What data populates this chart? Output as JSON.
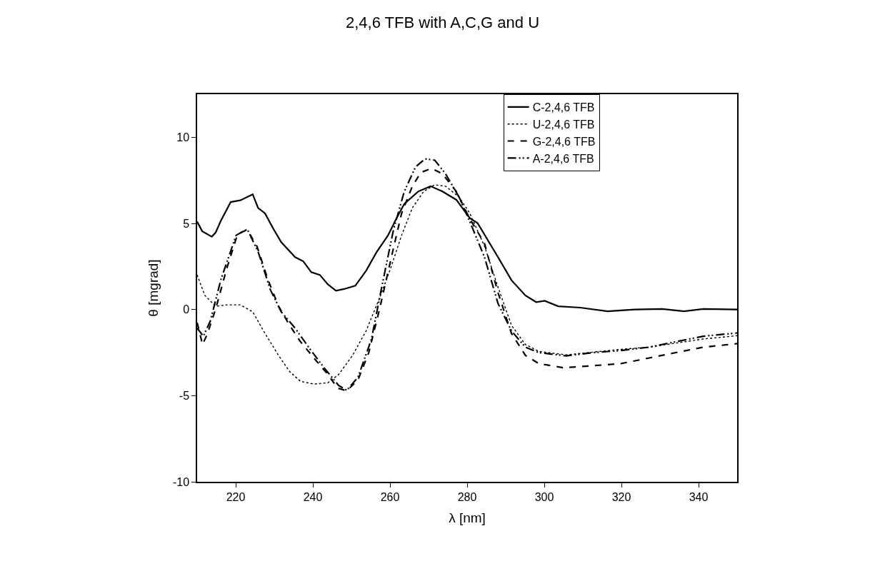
{
  "chart_data": {
    "type": "line",
    "title": "2,4,6 TFB with A,C,G and U",
    "xlabel": "λ [nm]",
    "ylabel": "θ [mgrad]",
    "xlim": [
      210,
      350
    ],
    "xticks": [
      220,
      240,
      260,
      280,
      300,
      320,
      340
    ],
    "ylim": [
      -10,
      12.5
    ],
    "yticks": [
      -10,
      -5,
      0,
      5,
      10
    ],
    "legend": "top right",
    "marker": "none",
    "series": [
      {
        "name": "C-2,4,6 TFB",
        "color": "#000000",
        "line_style": "solid",
        "x": [
          210,
          211.3,
          213.8,
          214.8,
          216.2,
          218.7,
          221.2,
          224.4,
          225.8,
          227.6,
          229.7,
          231.8,
          235.4,
          237.5,
          239.6,
          241.8,
          243.9,
          246,
          248.1,
          251,
          253.8,
          256.6,
          259.5,
          261.6,
          263.7,
          267.3,
          270.5,
          273.6,
          277.2,
          280.7,
          282.7,
          288,
          291.5,
          295.1,
          297.9,
          300.1,
          303.6,
          309.3,
          316.4,
          323.5,
          330.6,
          336.2,
          341.2,
          350
        ],
        "values": [
          5.1,
          4.55,
          4.23,
          4.47,
          5.18,
          6.24,
          6.34,
          6.69,
          5.9,
          5.58,
          4.71,
          3.91,
          3.04,
          2.8,
          2.17,
          2.01,
          1.46,
          1.09,
          1.19,
          1.38,
          2.25,
          3.36,
          4.31,
          5.26,
          6.13,
          6.85,
          7.16,
          6.85,
          6.37,
          5.3,
          5.02,
          3.04,
          1.7,
          0.82,
          0.43,
          0.51,
          0.19,
          0.11,
          -0.1,
          0,
          0.03,
          -0.1,
          0.03,
          0
        ]
      },
      {
        "name": "U-2,4,6 TFB",
        "color": "#000000",
        "line_style": "dotted",
        "x": [
          210,
          212,
          214.8,
          217.7,
          221.2,
          224.4,
          227.6,
          231.1,
          234,
          236.8,
          240.3,
          243.9,
          246.7,
          250.3,
          253.8,
          257.3,
          260.2,
          263,
          265.8,
          268.7,
          271.6,
          274.4,
          277.9,
          280.7,
          284.5,
          288,
          291.5,
          295.1,
          298.6,
          305.7,
          312.8,
          319.9,
          327,
          334.1,
          341.2,
          350
        ],
        "values": [
          2.01,
          0.82,
          0.19,
          0.27,
          0.27,
          -0.13,
          -1.39,
          -2.66,
          -3.61,
          -4.17,
          -4.33,
          -4.25,
          -3.77,
          -2.66,
          -1.24,
          0.67,
          2.41,
          4.31,
          5.9,
          6.85,
          7.24,
          7.16,
          6.53,
          5.58,
          3.68,
          1.3,
          -0.92,
          -2.03,
          -2.43,
          -2.63,
          -2.47,
          -2.31,
          -2.19,
          -1.95,
          -1.71,
          -1.52
        ]
      },
      {
        "name": "G-2,4,6 TFB",
        "color": "#000000",
        "line_style": "dashed",
        "x": [
          210,
          211.4,
          212.7,
          214.8,
          217.7,
          220.5,
          223,
          225.5,
          228.3,
          231.1,
          234,
          236.8,
          240.3,
          243.9,
          246.4,
          248.8,
          251.7,
          254.5,
          257.3,
          260.2,
          263,
          265.8,
          268,
          270.8,
          273.6,
          277.2,
          280.7,
          284.5,
          288,
          291.5,
          295.1,
          298.6,
          305,
          312.8,
          319.9,
          327,
          334.1,
          341.2,
          350
        ],
        "values": [
          -0.76,
          -2.03,
          -1.39,
          0.03,
          2.4,
          4.39,
          4.63,
          3.68,
          1.77,
          0.19,
          -0.92,
          -1.87,
          -2.82,
          -3.77,
          -4.56,
          -4.72,
          -4.09,
          -2.5,
          0.03,
          2.88,
          5.58,
          7.16,
          7.96,
          8.19,
          7.88,
          6.85,
          5.26,
          3.84,
          0.98,
          -1.39,
          -2.66,
          -3.14,
          -3.38,
          -3.26,
          -3.14,
          -2.82,
          -2.5,
          -2.19,
          -1.98
        ]
      },
      {
        "name": "A-2,4,6 TFB",
        "color": "#000000",
        "line_style": "dashdotdot",
        "x": [
          210,
          211.6,
          213.4,
          216.2,
          220.1,
          223,
          225.8,
          229,
          231.8,
          235.4,
          238.9,
          243.2,
          246.7,
          248.8,
          251.7,
          255.2,
          258,
          260.9,
          263.7,
          266.6,
          269.1,
          271.6,
          274.4,
          277.9,
          280.7,
          284.5,
          288,
          291.5,
          295.1,
          298.6,
          305.7,
          312.8,
          319.9,
          327,
          334.1,
          341.2,
          350
        ],
        "values": [
          -1.08,
          -1.55,
          -0.68,
          1.77,
          4.31,
          4.66,
          3.36,
          1.14,
          -0.13,
          -1.08,
          -2.19,
          -3.46,
          -4.41,
          -4.69,
          -3.93,
          -1.71,
          1.46,
          4.63,
          6.85,
          8.27,
          8.75,
          8.67,
          7.88,
          6.53,
          5.1,
          3.04,
          0.35,
          -1.24,
          -2.19,
          -2.5,
          -2.69,
          -2.5,
          -2.38,
          -2.19,
          -1.87,
          -1.55,
          -1.36
        ]
      }
    ]
  }
}
